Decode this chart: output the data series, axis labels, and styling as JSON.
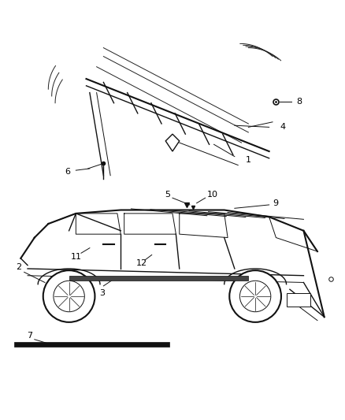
{
  "bg_color": "#ffffff",
  "fig_width": 4.38,
  "fig_height": 5.33,
  "dpi": 100,
  "color_dark": "#111111",
  "color_line": "#222222",
  "lw_thin": 0.7,
  "lw_med": 1.0,
  "lw_thick": 1.5
}
